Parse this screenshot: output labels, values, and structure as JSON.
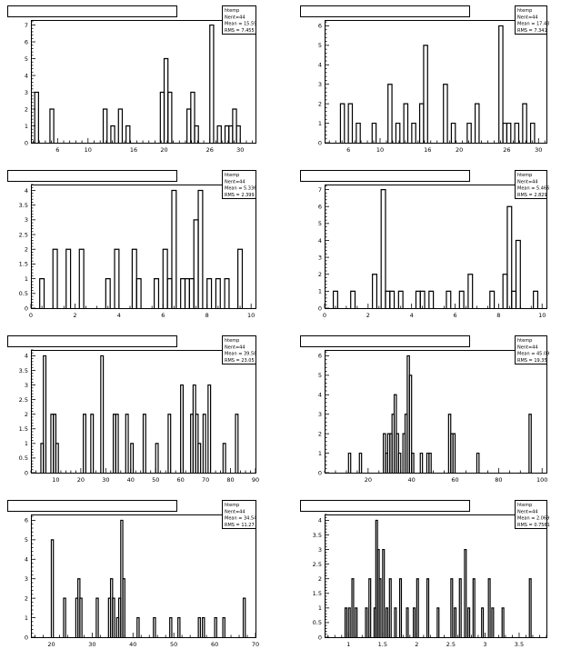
{
  "page": {
    "background": "#ffffff"
  },
  "colors": {
    "axis": "#000000",
    "hist": "#000000"
  },
  "chart_data": [
    {
      "type": "bar",
      "histtype": "step",
      "stats": {
        "name": "htemp",
        "entries": "Nent=44",
        "mean": "Mean = 15.59",
        "rms": "RMS = 7.455"
      },
      "xlim": [
        2.5,
        32
      ],
      "ylim": [
        0,
        7.3
      ],
      "xticks": [
        6,
        10,
        16,
        20,
        26,
        30
      ],
      "yticks": [
        0,
        1,
        2,
        3,
        4,
        5,
        6,
        7
      ],
      "bin_width": 0.5,
      "bins": [
        [
          3,
          3
        ],
        [
          5,
          2
        ],
        [
          12,
          2
        ],
        [
          13,
          1
        ],
        [
          14,
          2
        ],
        [
          15,
          1
        ],
        [
          19.5,
          3
        ],
        [
          20,
          5
        ],
        [
          20.5,
          3
        ],
        [
          23,
          2
        ],
        [
          23.5,
          3
        ],
        [
          24,
          1
        ],
        [
          26,
          7
        ],
        [
          27,
          1
        ],
        [
          28,
          1
        ],
        [
          28.5,
          1
        ],
        [
          29,
          2
        ],
        [
          29.5,
          1
        ]
      ]
    },
    {
      "type": "bar",
      "histtype": "step",
      "stats": {
        "name": "htemp",
        "entries": "Nent=44",
        "mean": "Mean = 17.43",
        "rms": "RMS = 7.341"
      },
      "xlim": [
        3,
        31
      ],
      "ylim": [
        0,
        6.3
      ],
      "xticks": [
        6,
        10,
        16,
        20,
        26,
        30
      ],
      "yticks": [
        0,
        1,
        2,
        3,
        4,
        5,
        6
      ],
      "bin_width": 0.5,
      "bins": [
        [
          5,
          2
        ],
        [
          6,
          2
        ],
        [
          7,
          1
        ],
        [
          9,
          1
        ],
        [
          11,
          3
        ],
        [
          12,
          1
        ],
        [
          13,
          2
        ],
        [
          14,
          1
        ],
        [
          15,
          2
        ],
        [
          15.5,
          5
        ],
        [
          18,
          3
        ],
        [
          19,
          1
        ],
        [
          21,
          1
        ],
        [
          22,
          2
        ],
        [
          25,
          6
        ],
        [
          25.5,
          1
        ],
        [
          26,
          1
        ],
        [
          27,
          1
        ],
        [
          28,
          2
        ],
        [
          29,
          1
        ]
      ]
    },
    {
      "type": "bar",
      "histtype": "step",
      "stats": {
        "name": "htemp",
        "entries": "Nent=44",
        "mean": "Mean = 5.336",
        "rms": "RMS = 2.399"
      },
      "xlim": [
        0,
        10.2
      ],
      "ylim": [
        0,
        4.2
      ],
      "xticks": [
        0,
        2,
        4,
        6,
        8,
        10
      ],
      "yticks": [
        0,
        0.5,
        1,
        1.5,
        2,
        2.5,
        3,
        3.5,
        4
      ],
      "bin_width": 0.2,
      "bins": [
        [
          0.4,
          1
        ],
        [
          1.0,
          2
        ],
        [
          1.6,
          2
        ],
        [
          2.2,
          2
        ],
        [
          3.4,
          1
        ],
        [
          3.8,
          2
        ],
        [
          4.6,
          2
        ],
        [
          4.8,
          1
        ],
        [
          5.6,
          1
        ],
        [
          6.0,
          2
        ],
        [
          6.2,
          1
        ],
        [
          6.4,
          4
        ],
        [
          6.8,
          1
        ],
        [
          7.0,
          1
        ],
        [
          7.2,
          1
        ],
        [
          7.4,
          3
        ],
        [
          7.6,
          4
        ],
        [
          8.0,
          1
        ],
        [
          8.4,
          1
        ],
        [
          8.8,
          1
        ],
        [
          9.4,
          2
        ]
      ]
    },
    {
      "type": "bar",
      "histtype": "step",
      "stats": {
        "name": "htemp",
        "entries": "Nent=44",
        "mean": "Mean = 5.466",
        "rms": "RMS = 2.829"
      },
      "xlim": [
        0,
        10.2
      ],
      "ylim": [
        0,
        7.3
      ],
      "xticks": [
        0,
        2,
        4,
        6,
        8,
        10
      ],
      "yticks": [
        0,
        1,
        2,
        3,
        4,
        5,
        6,
        7
      ],
      "bin_width": 0.2,
      "bins": [
        [
          0.4,
          1
        ],
        [
          1.2,
          1
        ],
        [
          2.2,
          2
        ],
        [
          2.6,
          7
        ],
        [
          2.8,
          1
        ],
        [
          3.0,
          1
        ],
        [
          3.4,
          1
        ],
        [
          4.2,
          1
        ],
        [
          4.4,
          1
        ],
        [
          4.8,
          1
        ],
        [
          5.6,
          1
        ],
        [
          6.2,
          1
        ],
        [
          6.6,
          2
        ],
        [
          7.6,
          1
        ],
        [
          8.2,
          2
        ],
        [
          8.4,
          6
        ],
        [
          8.6,
          1
        ],
        [
          8.8,
          4
        ],
        [
          9.6,
          1
        ]
      ]
    },
    {
      "type": "bar",
      "histtype": "step",
      "stats": {
        "name": "htemp",
        "entries": "Nent=44",
        "mean": "Mean = 39.58",
        "rms": "RMS = 23.05"
      },
      "xlim": [
        0,
        90
      ],
      "ylim": [
        0,
        4.2
      ],
      "xticks": [
        10,
        20,
        30,
        40,
        50,
        60,
        70,
        80,
        90
      ],
      "yticks": [
        0,
        0.5,
        1,
        1.5,
        2,
        2.5,
        3,
        3.5,
        4
      ],
      "bin_width": 1,
      "bins": [
        [
          4,
          1
        ],
        [
          5,
          4
        ],
        [
          8,
          2
        ],
        [
          9,
          2
        ],
        [
          10,
          1
        ],
        [
          21,
          2
        ],
        [
          24,
          2
        ],
        [
          28,
          4
        ],
        [
          33,
          2
        ],
        [
          34,
          2
        ],
        [
          38,
          2
        ],
        [
          40,
          1
        ],
        [
          45,
          2
        ],
        [
          50,
          1
        ],
        [
          55,
          2
        ],
        [
          60,
          3
        ],
        [
          64,
          2
        ],
        [
          65,
          3
        ],
        [
          66,
          2
        ],
        [
          67,
          1
        ],
        [
          69,
          2
        ],
        [
          71,
          3
        ],
        [
          77,
          1
        ],
        [
          82,
          2
        ]
      ]
    },
    {
      "type": "bar",
      "histtype": "step",
      "stats": {
        "name": "htemp",
        "entries": "Nent=44",
        "mean": "Mean = 45.09",
        "rms": "RMS = 19.35"
      },
      "xlim": [
        0,
        102
      ],
      "ylim": [
        0,
        6.3
      ],
      "xticks": [
        20,
        40,
        60,
        80,
        100
      ],
      "yticks": [
        0,
        1,
        2,
        3,
        4,
        5,
        6
      ],
      "bin_width": 1,
      "bins": [
        [
          11,
          1
        ],
        [
          16,
          1
        ],
        [
          27,
          2
        ],
        [
          28,
          1
        ],
        [
          29,
          2
        ],
        [
          30,
          2
        ],
        [
          31,
          3
        ],
        [
          32,
          4
        ],
        [
          33,
          2
        ],
        [
          34,
          1
        ],
        [
          36,
          2
        ],
        [
          37,
          3
        ],
        [
          38,
          6
        ],
        [
          39,
          5
        ],
        [
          40,
          1
        ],
        [
          44,
          1
        ],
        [
          47,
          1
        ],
        [
          48,
          1
        ],
        [
          57,
          3
        ],
        [
          58,
          2
        ],
        [
          59,
          2
        ],
        [
          70,
          1
        ],
        [
          94,
          3
        ]
      ]
    },
    {
      "type": "bar",
      "histtype": "step",
      "stats": {
        "name": "htemp",
        "entries": "Nent=44",
        "mean": "Mean = 34.54",
        "rms": "RMS = 11.27"
      },
      "xlim": [
        15,
        70
      ],
      "ylim": [
        0,
        6.3
      ],
      "xticks": [
        20,
        30,
        40,
        50,
        60,
        70
      ],
      "yticks": [
        0,
        1,
        2,
        3,
        4,
        5,
        6
      ],
      "bin_width": 0.5,
      "bins": [
        [
          20,
          5
        ],
        [
          23,
          2
        ],
        [
          26,
          2
        ],
        [
          26.5,
          3
        ],
        [
          27,
          2
        ],
        [
          31,
          2
        ],
        [
          34,
          2
        ],
        [
          34.5,
          3
        ],
        [
          35,
          2
        ],
        [
          36,
          1
        ],
        [
          36.5,
          2
        ],
        [
          37,
          6
        ],
        [
          37.5,
          3
        ],
        [
          41,
          1
        ],
        [
          45,
          1
        ],
        [
          49,
          1
        ],
        [
          51,
          1
        ],
        [
          56,
          1
        ],
        [
          57,
          1
        ],
        [
          60,
          1
        ],
        [
          62,
          1
        ],
        [
          67,
          2
        ]
      ]
    },
    {
      "type": "bar",
      "histtype": "step",
      "stats": {
        "name": "htemp",
        "entries": "Nent=44",
        "mean": "Mean = 2.069",
        "rms": "RMS = 0.7561"
      },
      "xlim": [
        0.65,
        3.9
      ],
      "ylim": [
        0,
        4.2
      ],
      "xticks": [
        1,
        1.5,
        2,
        2.5,
        3,
        3.5
      ],
      "yticks": [
        0,
        0.5,
        1,
        1.5,
        2,
        2.5,
        3,
        3.5,
        4
      ],
      "bin_width": 0.025,
      "bins": [
        [
          0.95,
          1
        ],
        [
          1.0,
          1
        ],
        [
          1.05,
          2
        ],
        [
          1.1,
          1
        ],
        [
          1.25,
          1
        ],
        [
          1.3,
          2
        ],
        [
          1.375,
          1
        ],
        [
          1.4,
          4
        ],
        [
          1.425,
          3
        ],
        [
          1.45,
          2
        ],
        [
          1.5,
          3
        ],
        [
          1.55,
          1
        ],
        [
          1.6,
          2
        ],
        [
          1.675,
          1
        ],
        [
          1.75,
          2
        ],
        [
          1.85,
          1
        ],
        [
          1.95,
          1
        ],
        [
          2.0,
          2
        ],
        [
          2.15,
          2
        ],
        [
          2.3,
          1
        ],
        [
          2.5,
          2
        ],
        [
          2.55,
          1
        ],
        [
          2.625,
          2
        ],
        [
          2.7,
          3
        ],
        [
          2.75,
          1
        ],
        [
          2.825,
          2
        ],
        [
          2.95,
          1
        ],
        [
          3.05,
          2
        ],
        [
          3.1,
          1
        ],
        [
          3.25,
          1
        ],
        [
          3.65,
          2
        ]
      ]
    }
  ]
}
